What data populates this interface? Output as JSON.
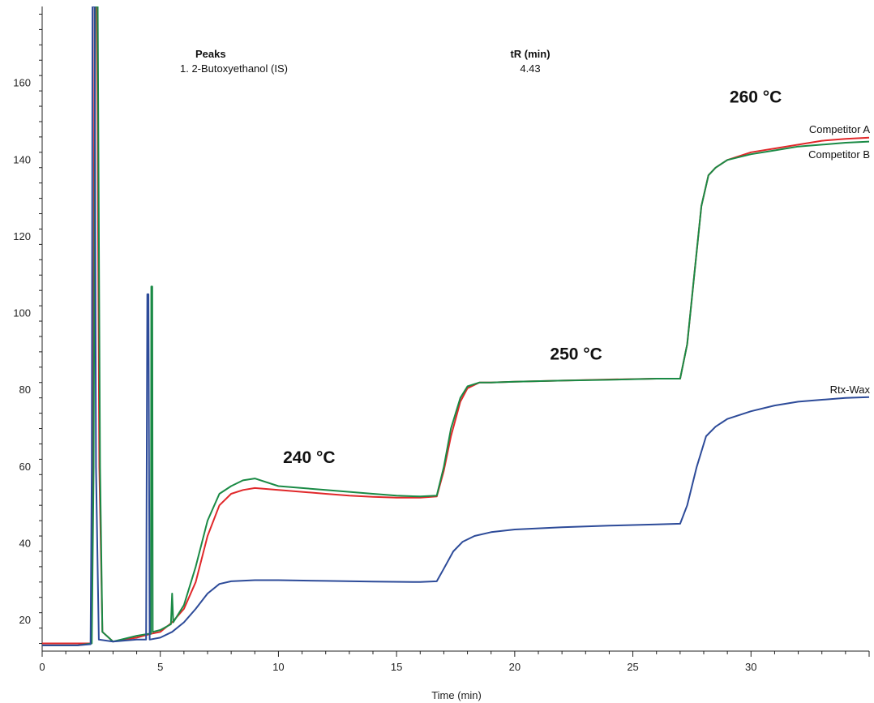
{
  "chart_data": {
    "type": "line",
    "title": "",
    "xlabel": "Time (min)",
    "ylabel": "",
    "xlim": [
      0,
      35
    ],
    "ylim": [
      12,
      180
    ],
    "x_ticks": [
      0,
      5,
      10,
      15,
      20,
      25,
      30
    ],
    "y_ticks": [
      20,
      40,
      60,
      80,
      100,
      120,
      140,
      160
    ],
    "grid": false,
    "peak_table": {
      "header_peaks": "Peaks",
      "header_tr": "tR (min)",
      "rows": [
        {
          "label": "1. 2-Butoxyethanol (IS)",
          "tr": "4.43"
        }
      ]
    },
    "annotations": [
      {
        "text": "240 °C",
        "x": 11.3,
        "y": 61
      },
      {
        "text": "250 °C",
        "x": 22.6,
        "y": 88
      },
      {
        "text": "260 °C",
        "x": 30.2,
        "y": 155
      }
    ],
    "series": [
      {
        "name": "Competitor A",
        "color": "#e0282a",
        "points": [
          [
            0,
            14
          ],
          [
            1.5,
            14
          ],
          [
            2.08,
            14
          ],
          [
            2.15,
            60
          ],
          [
            2.22,
            180
          ],
          [
            2.32,
            180
          ],
          [
            2.42,
            60
          ],
          [
            2.55,
            17
          ],
          [
            3,
            14.5
          ],
          [
            4,
            15.5
          ],
          [
            4.6,
            16.5
          ],
          [
            5,
            17
          ],
          [
            5.5,
            19.5
          ],
          [
            6,
            23
          ],
          [
            6.5,
            30
          ],
          [
            7,
            42
          ],
          [
            7.5,
            50
          ],
          [
            8,
            53
          ],
          [
            8.5,
            54
          ],
          [
            9,
            54.5
          ],
          [
            10,
            54
          ],
          [
            11,
            53.5
          ],
          [
            12,
            53
          ],
          [
            13,
            52.5
          ],
          [
            14,
            52.2
          ],
          [
            15,
            52
          ],
          [
            16,
            52
          ],
          [
            16.7,
            52.3
          ],
          [
            17,
            59
          ],
          [
            17.3,
            68
          ],
          [
            17.7,
            77
          ],
          [
            18,
            80.5
          ],
          [
            18.5,
            82
          ],
          [
            19,
            82
          ],
          [
            20,
            82.2
          ],
          [
            22,
            82.5
          ],
          [
            24,
            82.8
          ],
          [
            26,
            83
          ],
          [
            27,
            83
          ],
          [
            27.3,
            92
          ],
          [
            27.6,
            110
          ],
          [
            27.9,
            128
          ],
          [
            28.2,
            136
          ],
          [
            28.5,
            138
          ],
          [
            29,
            140
          ],
          [
            30,
            142
          ],
          [
            31,
            143
          ],
          [
            32,
            144
          ],
          [
            33,
            145
          ],
          [
            34,
            145.5
          ],
          [
            35,
            145.8
          ]
        ]
      },
      {
        "name": "Competitor B",
        "color": "#1a8a45",
        "points": [
          [
            0,
            13.5
          ],
          [
            1.5,
            13.5
          ],
          [
            2.1,
            14
          ],
          [
            2.18,
            60
          ],
          [
            2.25,
            180
          ],
          [
            2.35,
            180
          ],
          [
            2.45,
            60
          ],
          [
            2.55,
            17
          ],
          [
            3,
            14.5
          ],
          [
            4,
            16
          ],
          [
            4.5,
            16.5
          ],
          [
            4.6,
            16.5
          ],
          [
            4.62,
            107
          ],
          [
            4.66,
            107
          ],
          [
            4.68,
            17
          ],
          [
            5,
            17.5
          ],
          [
            5.45,
            19
          ],
          [
            5.5,
            27
          ],
          [
            5.55,
            19.5
          ],
          [
            6,
            24
          ],
          [
            6.5,
            34
          ],
          [
            7,
            46
          ],
          [
            7.5,
            53
          ],
          [
            8,
            55
          ],
          [
            8.5,
            56.5
          ],
          [
            9,
            57
          ],
          [
            10,
            55
          ],
          [
            11,
            54.5
          ],
          [
            12,
            54
          ],
          [
            13,
            53.5
          ],
          [
            14,
            53
          ],
          [
            15,
            52.5
          ],
          [
            16,
            52.3
          ],
          [
            16.7,
            52.5
          ],
          [
            17,
            60
          ],
          [
            17.3,
            70
          ],
          [
            17.7,
            78
          ],
          [
            18,
            81
          ],
          [
            18.5,
            82
          ],
          [
            19,
            82
          ],
          [
            20,
            82.2
          ],
          [
            22,
            82.5
          ],
          [
            24,
            82.7
          ],
          [
            26,
            83
          ],
          [
            27,
            83
          ],
          [
            27.3,
            92
          ],
          [
            27.6,
            110
          ],
          [
            27.9,
            128
          ],
          [
            28.2,
            136
          ],
          [
            28.5,
            138
          ],
          [
            29,
            140
          ],
          [
            30,
            141.5
          ],
          [
            31,
            142.5
          ],
          [
            32,
            143.5
          ],
          [
            33,
            144
          ],
          [
            34,
            144.5
          ],
          [
            35,
            144.8
          ]
        ]
      },
      {
        "name": "Rtx-Wax",
        "color": "#2d4b99",
        "points": [
          [
            0,
            13.5
          ],
          [
            1.5,
            13.5
          ],
          [
            2.05,
            13.8
          ],
          [
            2.1,
            60
          ],
          [
            2.13,
            180
          ],
          [
            2.22,
            180
          ],
          [
            2.28,
            60
          ],
          [
            2.4,
            15
          ],
          [
            3,
            14.5
          ],
          [
            4,
            15
          ],
          [
            4.4,
            15
          ],
          [
            4.45,
            105
          ],
          [
            4.5,
            105
          ],
          [
            4.55,
            15
          ],
          [
            5,
            15.5
          ],
          [
            5.5,
            17
          ],
          [
            6,
            19.5
          ],
          [
            6.5,
            23
          ],
          [
            7,
            27
          ],
          [
            7.5,
            29.5
          ],
          [
            8,
            30.2
          ],
          [
            9,
            30.5
          ],
          [
            10,
            30.5
          ],
          [
            12,
            30.3
          ],
          [
            14,
            30.1
          ],
          [
            16,
            30
          ],
          [
            16.7,
            30.2
          ],
          [
            17,
            33.5
          ],
          [
            17.4,
            38
          ],
          [
            17.8,
            40.5
          ],
          [
            18.3,
            42
          ],
          [
            19,
            43
          ],
          [
            20,
            43.7
          ],
          [
            22,
            44.3
          ],
          [
            24,
            44.7
          ],
          [
            26,
            45
          ],
          [
            27,
            45.2
          ],
          [
            27.3,
            50
          ],
          [
            27.7,
            60
          ],
          [
            28.1,
            68
          ],
          [
            28.5,
            70.5
          ],
          [
            29,
            72.5
          ],
          [
            30,
            74.5
          ],
          [
            31,
            76
          ],
          [
            32,
            77
          ],
          [
            33,
            77.5
          ],
          [
            34,
            78
          ],
          [
            35,
            78.2
          ]
        ]
      }
    ]
  }
}
